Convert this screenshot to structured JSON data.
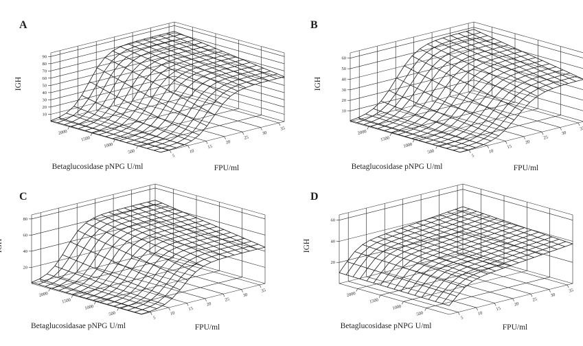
{
  "colors": {
    "background": "#ffffff",
    "ink": "#1f1f1f",
    "mesh_ink": "#151515"
  },
  "chart_data": [
    {
      "panel_label": "A",
      "type": "surface-mesh-3d",
      "zlabel": "IGH",
      "xlabel": "FPU/ml",
      "ylabel": "Betaglucosidase pNPG U/ml",
      "z_ticks": [
        10,
        20,
        30,
        40,
        50,
        60,
        70,
        80,
        90
      ],
      "zlim": [
        0,
        95
      ],
      "fpu_ticks": [
        5,
        10,
        15,
        20,
        25,
        30,
        35
      ],
      "fpu_range": [
        2.5,
        36.5
      ],
      "beta_ticks": [
        500,
        1000,
        1500,
        2000
      ],
      "beta_range": [
        0,
        2400
      ],
      "grid": true,
      "surface_model": {
        "type": "logistic_ridge",
        "plateau_base": 62,
        "plateau_gain": 20,
        "mid_base": 17,
        "mid_gain": -4,
        "steepness": 2.5
      },
      "z_at_ticks": {
        "beta_rows": [
          500,
          1000,
          1500,
          2000
        ],
        "fpu_cols": [
          5,
          10,
          15,
          20,
          25,
          30,
          35
        ],
        "values": [
          [
            1,
            5,
            26,
            55,
            64,
            66,
            66
          ],
          [
            1,
            8,
            34,
            61,
            69,
            70,
            71
          ],
          [
            2,
            11,
            42,
            68,
            74,
            75,
            75
          ],
          [
            3,
            16,
            51,
            74,
            78,
            79,
            79
          ]
        ]
      }
    },
    {
      "panel_label": "B",
      "type": "surface-mesh-3d",
      "zlabel": "IGH",
      "xlabel": "FPU/ml",
      "ylabel": "Betaglucosidase pNPG U/ml",
      "z_ticks": [
        10,
        20,
        30,
        40,
        50,
        60
      ],
      "zlim": [
        0,
        65
      ],
      "fpu_ticks": [
        5,
        10,
        15,
        20,
        25,
        30,
        35
      ],
      "fpu_range": [
        2.5,
        36.5
      ],
      "beta_ticks": [
        500,
        1000,
        1500,
        2000
      ],
      "beta_range": [
        0,
        2400
      ],
      "grid": true,
      "surface_model": {
        "type": "logistic_ridge",
        "plateau_base": 40,
        "plateau_gain": 18,
        "mid_base": 18,
        "mid_gain": -3,
        "steepness": 3
      },
      "z_at_ticks": {
        "beta_rows": [
          500,
          1000,
          1500,
          2000
        ],
        "fpu_cols": [
          5,
          10,
          15,
          20,
          25,
          30,
          35
        ],
        "values": [
          [
            1,
            3,
            14,
            31,
            41,
            43,
            44
          ],
          [
            1,
            5,
            17,
            36,
            45,
            47,
            48
          ],
          [
            1,
            6,
            21,
            41,
            49,
            51,
            52
          ],
          [
            2,
            8,
            26,
            46,
            53,
            55,
            55
          ]
        ]
      }
    },
    {
      "panel_label": "C",
      "type": "surface-mesh-3d",
      "zlabel": "IGH",
      "xlabel": "FPU/ml",
      "ylabel": "Betaglucosidasae pNPG U/ml",
      "z_ticks": [
        20,
        40,
        60,
        80
      ],
      "zlim": [
        0,
        85
      ],
      "fpu_ticks": [
        5,
        10,
        15,
        20,
        25,
        30,
        35
      ],
      "fpu_range": [
        2.5,
        36.5
      ],
      "beta_ticks": [
        500,
        1000,
        1500,
        2000
      ],
      "beta_range": [
        0,
        2400
      ],
      "grid": true,
      "surface_model": {
        "type": "logistic_ridge",
        "plateau_base": 45,
        "plateau_gain": 20,
        "mid_base": 14,
        "mid_gain": -2,
        "steepness": 2.5
      },
      "z_at_ticks": {
        "beta_rows": [
          500,
          1000,
          1500,
          2000
        ],
        "fpu_cols": [
          5,
          10,
          15,
          20,
          25,
          30,
          35
        ],
        "values": [
          [
            2,
            10,
            31,
            46,
            49,
            49,
            49
          ],
          [
            2,
            12,
            37,
            51,
            53,
            54,
            54
          ],
          [
            3,
            15,
            41,
            55,
            57,
            58,
            58
          ],
          [
            3,
            18,
            47,
            60,
            62,
            62,
            62
          ]
        ]
      }
    },
    {
      "panel_label": "D",
      "type": "surface-mesh-3d",
      "zlabel": "IGH",
      "xlabel": "FPU/ml",
      "ylabel": "Betaglucosidase pNPG U/ml",
      "z_ticks": [
        20,
        40,
        60
      ],
      "zlim": [
        0,
        65
      ],
      "fpu_ticks": [
        5,
        10,
        15,
        20,
        25,
        30,
        35
      ],
      "fpu_range": [
        2.5,
        36.5
      ],
      "beta_ticks": [
        500,
        1000,
        1500,
        2000
      ],
      "beta_range": [
        0,
        2400
      ],
      "grid": true,
      "surface_model": {
        "type": "ramp_plateau",
        "base": 25,
        "fpu_gain": 12,
        "beta_gain": 6,
        "onset_mid": 4,
        "onset_steep": 2
      },
      "z_at_ticks": {
        "beta_rows": [
          500,
          1000,
          1500,
          2000
        ],
        "fpu_cols": [
          5,
          10,
          15,
          20,
          25,
          30,
          35
        ],
        "values": [
          [
            17,
            28,
            31,
            33,
            35,
            37,
            38
          ],
          [
            18,
            30,
            33,
            34,
            36,
            38,
            40
          ],
          [
            19,
            31,
            34,
            36,
            37,
            39,
            41
          ],
          [
            20,
            32,
            35,
            37,
            39,
            40,
            42
          ]
        ]
      }
    }
  ]
}
